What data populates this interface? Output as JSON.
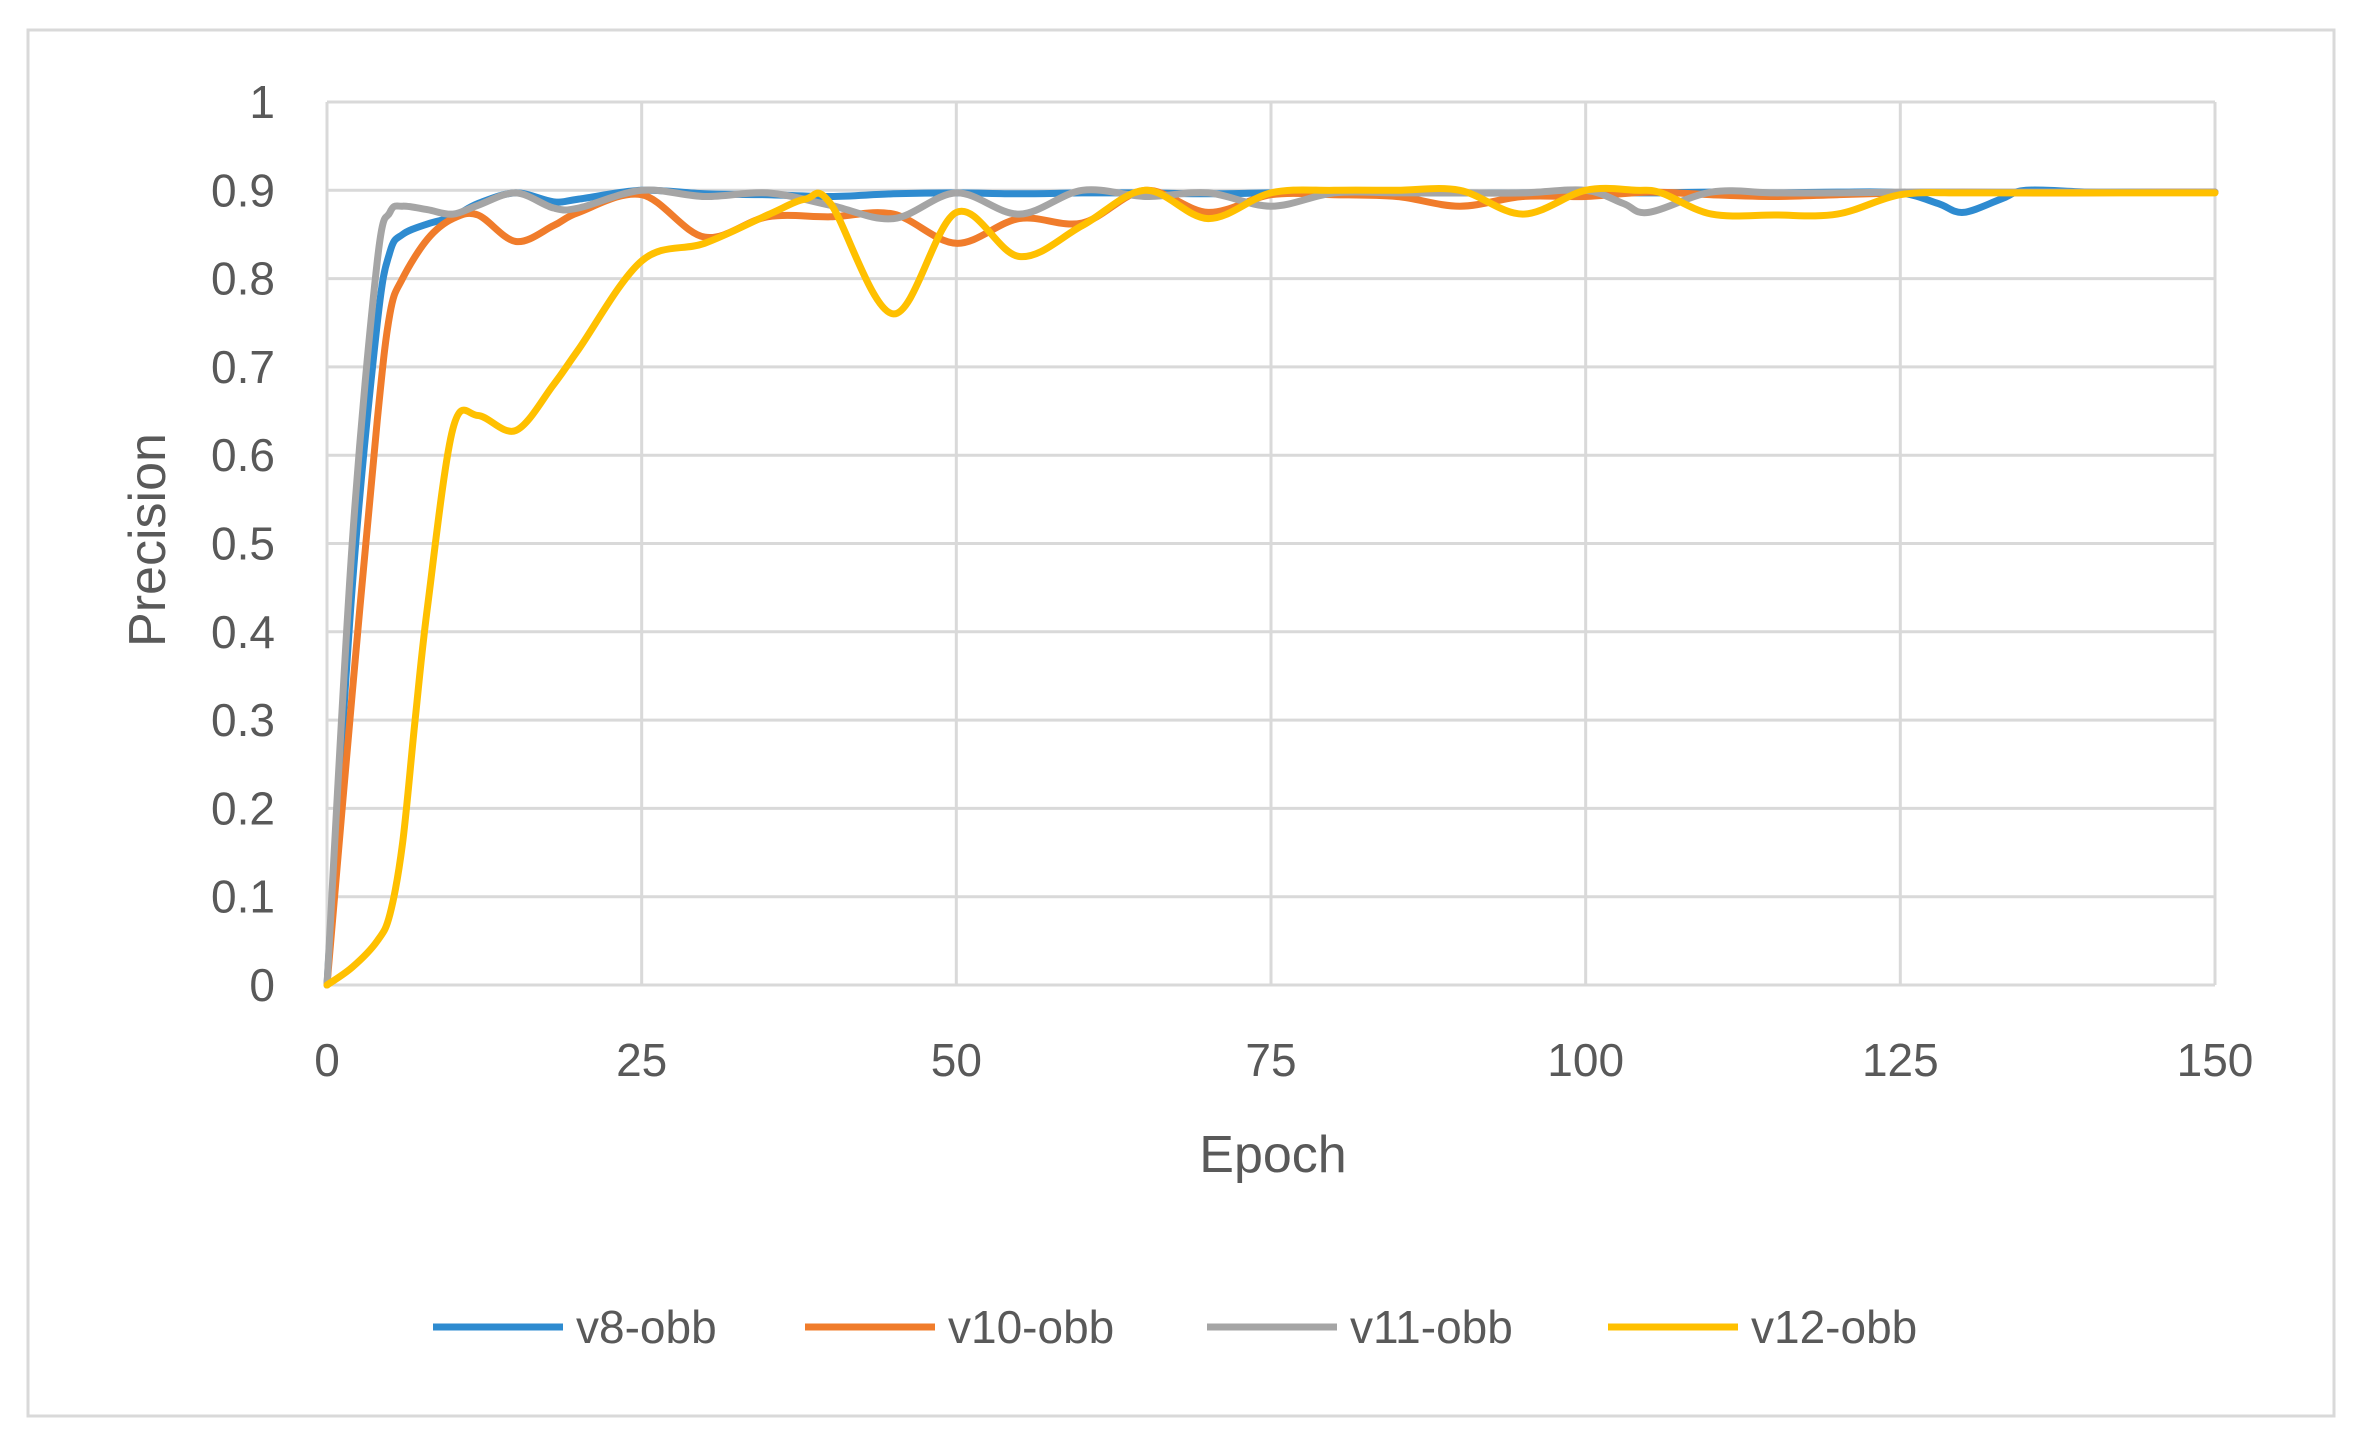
{
  "chart_data": {
    "type": "line",
    "title": "",
    "xlabel": "Epoch",
    "ylabel": "Precision",
    "xlim": [
      0,
      150
    ],
    "ylim": [
      0,
      1
    ],
    "x_ticks": [
      "0",
      "25",
      "50",
      "75",
      "100",
      "125",
      "150"
    ],
    "y_ticks": [
      "0",
      "0.1",
      "0.2",
      "0.3",
      "0.4",
      "0.5",
      "0.6",
      "0.7",
      "0.8",
      "0.9",
      "1"
    ],
    "grid": true,
    "legend_position": "bottom",
    "series": [
      {
        "name": "v8-obb",
        "color": "#2E8BD0",
        "x": [
          0,
          2,
          4,
          5,
          6,
          8,
          10,
          12,
          15,
          18,
          20,
          25,
          30,
          35,
          40,
          45,
          50,
          55,
          60,
          65,
          70,
          75,
          80,
          85,
          90,
          95,
          100,
          105,
          110,
          115,
          120,
          125,
          128,
          130,
          133,
          135,
          140,
          145,
          150
        ],
        "y": [
          0,
          0.45,
          0.75,
          0.83,
          0.85,
          0.862,
          0.87,
          0.885,
          0.897,
          0.887,
          0.89,
          0.9,
          0.896,
          0.895,
          0.893,
          0.896,
          0.897,
          0.896,
          0.897,
          0.897,
          0.896,
          0.897,
          0.897,
          0.897,
          0.897,
          0.897,
          0.898,
          0.897,
          0.898,
          0.897,
          0.898,
          0.897,
          0.885,
          0.875,
          0.89,
          0.9,
          0.898,
          0.898,
          0.898
        ]
      },
      {
        "name": "v10-obb",
        "color": "#F07C2B",
        "x": [
          0,
          2,
          4,
          5,
          6,
          8,
          10,
          12,
          15,
          18,
          20,
          25,
          30,
          35,
          40,
          45,
          50,
          55,
          60,
          65,
          70,
          75,
          80,
          85,
          90,
          95,
          100,
          105,
          110,
          115,
          120,
          125,
          130,
          135,
          140,
          145,
          150
        ],
        "y": [
          0,
          0.33,
          0.64,
          0.76,
          0.8,
          0.845,
          0.868,
          0.872,
          0.842,
          0.86,
          0.875,
          0.895,
          0.847,
          0.87,
          0.87,
          0.873,
          0.84,
          0.868,
          0.863,
          0.9,
          0.875,
          0.895,
          0.895,
          0.893,
          0.882,
          0.893,
          0.893,
          0.898,
          0.895,
          0.893,
          0.895,
          0.897,
          0.898,
          0.897,
          0.897,
          0.898,
          0.898
        ]
      },
      {
        "name": "v11-obb",
        "color": "#A5A5A5",
        "x": [
          0,
          2,
          4,
          5,
          6,
          8,
          10,
          12,
          15,
          18,
          20,
          25,
          30,
          35,
          40,
          45,
          50,
          55,
          60,
          65,
          70,
          75,
          80,
          85,
          90,
          95,
          100,
          103,
          105,
          110,
          115,
          120,
          125,
          130,
          135,
          140,
          145,
          150
        ],
        "y": [
          0,
          0.5,
          0.82,
          0.875,
          0.882,
          0.878,
          0.873,
          0.883,
          0.897,
          0.88,
          0.88,
          0.9,
          0.893,
          0.897,
          0.883,
          0.868,
          0.897,
          0.873,
          0.9,
          0.893,
          0.897,
          0.882,
          0.897,
          0.897,
          0.897,
          0.897,
          0.9,
          0.885,
          0.875,
          0.898,
          0.897,
          0.897,
          0.898,
          0.898,
          0.898,
          0.898,
          0.898,
          0.898
        ]
      },
      {
        "name": "v12-obb",
        "color": "#FFC000",
        "x": [
          0,
          2,
          4,
          5,
          6,
          7,
          8,
          10,
          12,
          15,
          18,
          20,
          25,
          30,
          35,
          38,
          40,
          45,
          50,
          55,
          60,
          65,
          70,
          75,
          80,
          85,
          90,
          95,
          100,
          104,
          106,
          110,
          115,
          120,
          125,
          130,
          135,
          140,
          145,
          150
        ],
        "y": [
          0,
          0.02,
          0.05,
          0.08,
          0.16,
          0.3,
          0.43,
          0.63,
          0.645,
          0.628,
          0.68,
          0.72,
          0.82,
          0.84,
          0.872,
          0.89,
          0.885,
          0.76,
          0.875,
          0.825,
          0.86,
          0.9,
          0.868,
          0.897,
          0.9,
          0.9,
          0.9,
          0.873,
          0.9,
          0.9,
          0.897,
          0.873,
          0.872,
          0.873,
          0.895,
          0.897,
          0.897,
          0.897,
          0.897,
          0.897
        ]
      }
    ]
  }
}
